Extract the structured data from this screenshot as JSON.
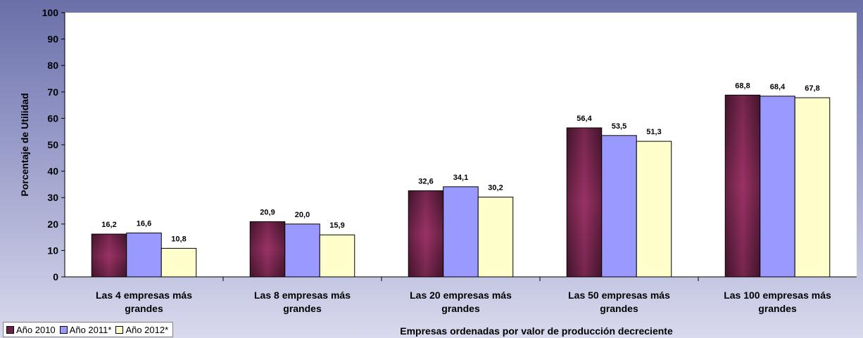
{
  "chart_data": {
    "type": "bar",
    "categories": [
      [
        "Las 4 empresas más",
        "grandes"
      ],
      [
        "Las 8 empresas más",
        "grandes"
      ],
      [
        "Las 20 empresas más",
        "grandes"
      ],
      [
        "Las 50 empresas más",
        "grandes"
      ],
      [
        "Las 100 empresas más",
        "grandes"
      ]
    ],
    "series": [
      {
        "name": "Año 2010",
        "labels": [
          "16,2",
          "20,9",
          "32,6",
          "56,4",
          "68,8"
        ],
        "values": [
          16.2,
          20.9,
          32.6,
          56.4,
          68.8
        ],
        "color": "#8b2c5c"
      },
      {
        "name": "Año 2011*",
        "labels": [
          "16,6",
          "20,0",
          "34,1",
          "53,5",
          "68,4"
        ],
        "values": [
          16.6,
          20.0,
          34.1,
          53.5,
          68.4
        ],
        "color": "#9999ff"
      },
      {
        "name": "Año 2012*",
        "labels": [
          "10,8",
          "15,9",
          "30,2",
          "51,3",
          "67,8"
        ],
        "values": [
          10.8,
          15.9,
          30.2,
          51.3,
          67.8
        ],
        "color": "#ffffcc"
      }
    ],
    "title": "",
    "xlabel": "Empresas ordenadas por valor de producción decreciente",
    "ylabel": "Porcentaje de Utilidad",
    "ylim": [
      0,
      100
    ],
    "yticks": [
      0,
      10,
      20,
      30,
      40,
      50,
      60,
      70,
      80,
      90,
      100
    ],
    "grid": false,
    "legend_position": "bottom-left"
  }
}
